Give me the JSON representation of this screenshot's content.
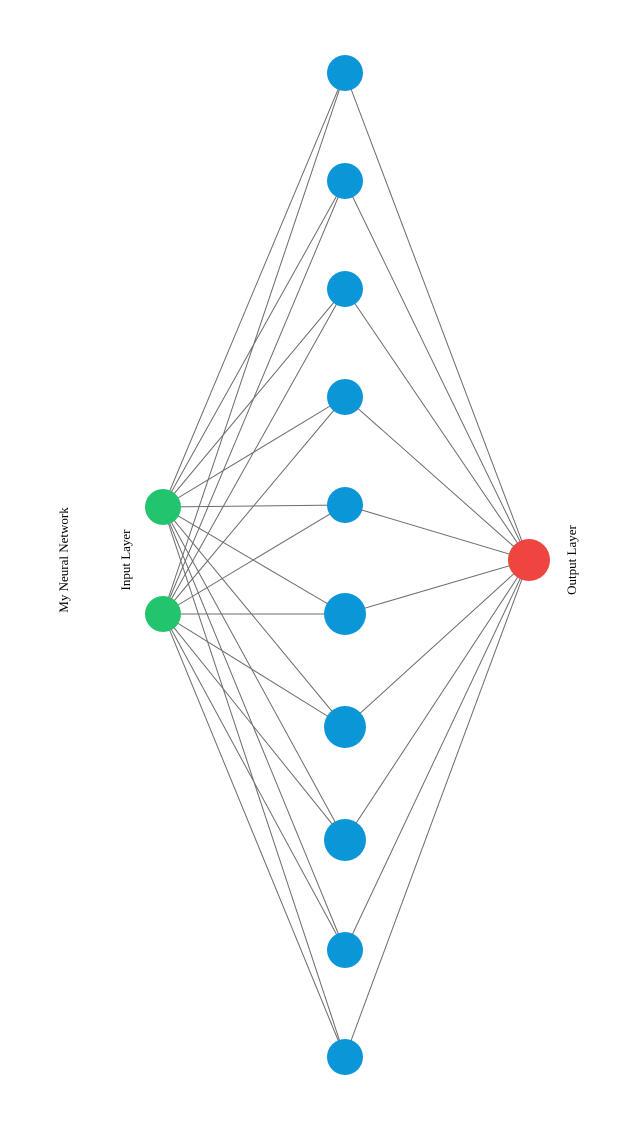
{
  "diagram": {
    "title": "My Neural Network",
    "layers": [
      {
        "key": "input",
        "label": "Input Layer",
        "color": "#22c46e",
        "node_count": 2
      },
      {
        "key": "hidden",
        "label": "",
        "color": "#0b96d8",
        "node_count": 10
      },
      {
        "key": "output",
        "label": "Output Layer",
        "color": "#ee4540",
        "node_count": 1
      }
    ],
    "connectivity": "fully-connected",
    "edge_color": "#6b6b6b"
  }
}
